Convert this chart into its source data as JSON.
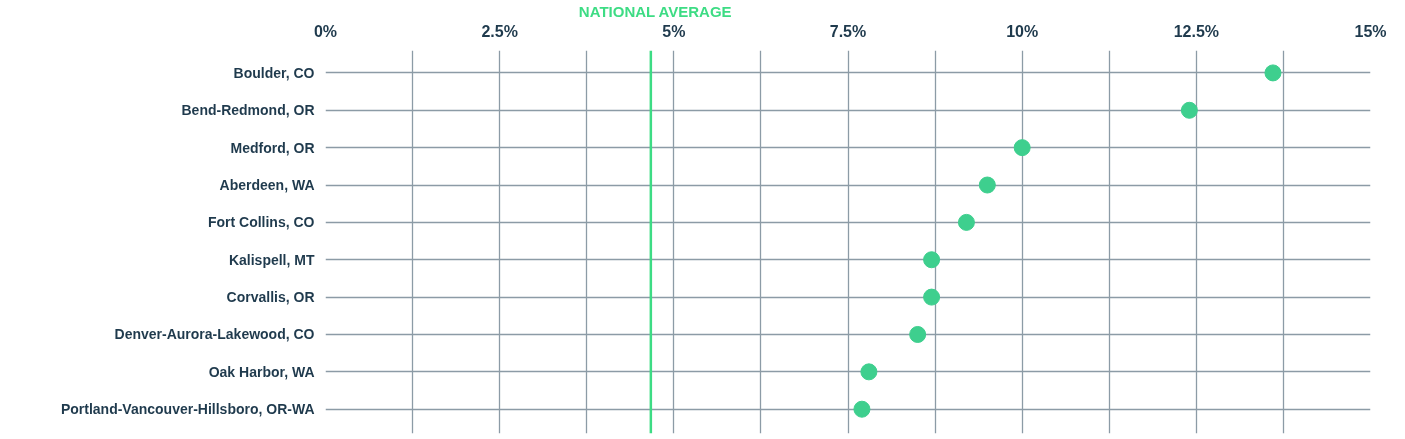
{
  "chart_data": {
    "type": "scatter",
    "orientation": "horizontal",
    "categories": [
      "Boulder, CO",
      "Bend-Redmond, OR",
      "Medford, OR",
      "Aberdeen, WA",
      "Fort Collins, CO",
      "Kalispell, MT",
      "Corvallis, OR",
      "Denver-Aurora-Lakewood, CO",
      "Oak Harbor, WA",
      "Portland-Vancouver-Hillsboro, OR-WA"
    ],
    "series": [
      {
        "color": "#3ecf8e",
        "values": [
          13.6,
          12.4,
          10.0,
          9.5,
          9.2,
          8.7,
          8.7,
          8.5,
          7.8,
          7.7
        ]
      }
    ],
    "xlim": [
      0,
      15
    ],
    "xticks": [
      {
        "value": 0,
        "label": "0%"
      },
      {
        "value": 1.25,
        "label": null
      },
      {
        "value": 2.5,
        "label": "2.5%"
      },
      {
        "value": 3.75,
        "label": null
      },
      {
        "value": 5,
        "label": "5%"
      },
      {
        "value": 6.25,
        "label": null
      },
      {
        "value": 7.5,
        "label": "7.5%"
      },
      {
        "value": 8.75,
        "label": null
      },
      {
        "value": 10,
        "label": "10%"
      },
      {
        "value": 11.25,
        "label": null
      },
      {
        "value": 12.5,
        "label": "12.5%"
      },
      {
        "value": 13.75,
        "label": null
      },
      {
        "value": 15,
        "label": "15%"
      }
    ],
    "grid": true,
    "marker": "circle",
    "ref_lines": [
      {
        "axis": "x",
        "value": 4.67,
        "label": "NATIONAL AVERAGE",
        "color": "#3ddc84"
      }
    ]
  }
}
